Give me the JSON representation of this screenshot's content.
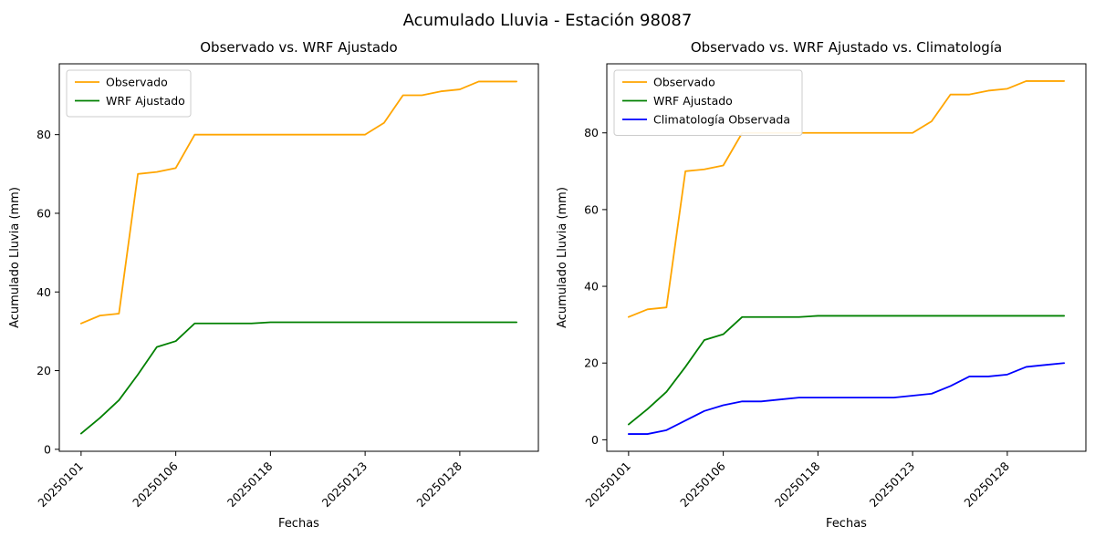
{
  "figure": {
    "suptitle": "Acumulado Lluvia - Estación 98087"
  },
  "colors": {
    "observado": "#FFA500",
    "wrf": "#008000",
    "climatologia": "#0000FF"
  },
  "chart_data": [
    {
      "type": "line",
      "title": "Observado vs. WRF Ajustado",
      "xlabel": "Fechas",
      "ylabel": "Acumulado Lluvia (mm)",
      "xlim": [
        -1.15,
        24.15
      ],
      "ylim": [
        -0.5,
        98
      ],
      "yticks": [
        0,
        20,
        40,
        60,
        80
      ],
      "x_tick_positions": [
        0,
        5,
        10,
        15,
        20
      ],
      "x_tick_labels": [
        "20250101",
        "20250106",
        "20250118",
        "20250123",
        "20250128"
      ],
      "grid": false,
      "legend_position": "upper-left",
      "series": [
        {
          "name": "Observado",
          "color": "#FFA500",
          "values": [
            32,
            34,
            34.5,
            70,
            70.5,
            71.5,
            80,
            80,
            80,
            80,
            80,
            80,
            80,
            80,
            80,
            80,
            83,
            90,
            90,
            91,
            91.5,
            93.5,
            93.5,
            93.5
          ]
        },
        {
          "name": "WRF Ajustado",
          "color": "#008000",
          "values": [
            4,
            8,
            12.5,
            19,
            26,
            27.5,
            32,
            32,
            32,
            32,
            32.3,
            32.3,
            32.3,
            32.3,
            32.3,
            32.3,
            32.3,
            32.3,
            32.3,
            32.3,
            32.3,
            32.3,
            32.3,
            32.3
          ]
        }
      ]
    },
    {
      "type": "line",
      "title": "Observado vs. WRF Ajustado vs. Climatología",
      "xlabel": "Fechas",
      "ylabel": "Acumulado Lluvia (mm)",
      "xlim": [
        -1.15,
        24.15
      ],
      "ylim": [
        -3,
        98
      ],
      "yticks": [
        0,
        20,
        40,
        60,
        80
      ],
      "x_tick_positions": [
        0,
        5,
        10,
        15,
        20
      ],
      "x_tick_labels": [
        "20250101",
        "20250106",
        "20250118",
        "20250123",
        "20250128"
      ],
      "grid": false,
      "legend_position": "upper-left",
      "series": [
        {
          "name": "Observado",
          "color": "#FFA500",
          "values": [
            32,
            34,
            34.5,
            70,
            70.5,
            71.5,
            80,
            80,
            80,
            80,
            80,
            80,
            80,
            80,
            80,
            80,
            83,
            90,
            90,
            91,
            91.5,
            93.5,
            93.5,
            93.5
          ]
        },
        {
          "name": "WRF Ajustado",
          "color": "#008000",
          "values": [
            4,
            8,
            12.5,
            19,
            26,
            27.5,
            32,
            32,
            32,
            32,
            32.3,
            32.3,
            32.3,
            32.3,
            32.3,
            32.3,
            32.3,
            32.3,
            32.3,
            32.3,
            32.3,
            32.3,
            32.3,
            32.3
          ]
        },
        {
          "name": "Climatología Observada",
          "color": "#0000FF",
          "values": [
            1.5,
            1.5,
            2.5,
            5,
            7.5,
            9,
            10,
            10,
            10.5,
            11,
            11,
            11,
            11,
            11,
            11,
            11.5,
            12,
            14,
            16.5,
            16.5,
            17,
            19,
            19.5,
            20
          ]
        }
      ]
    }
  ]
}
